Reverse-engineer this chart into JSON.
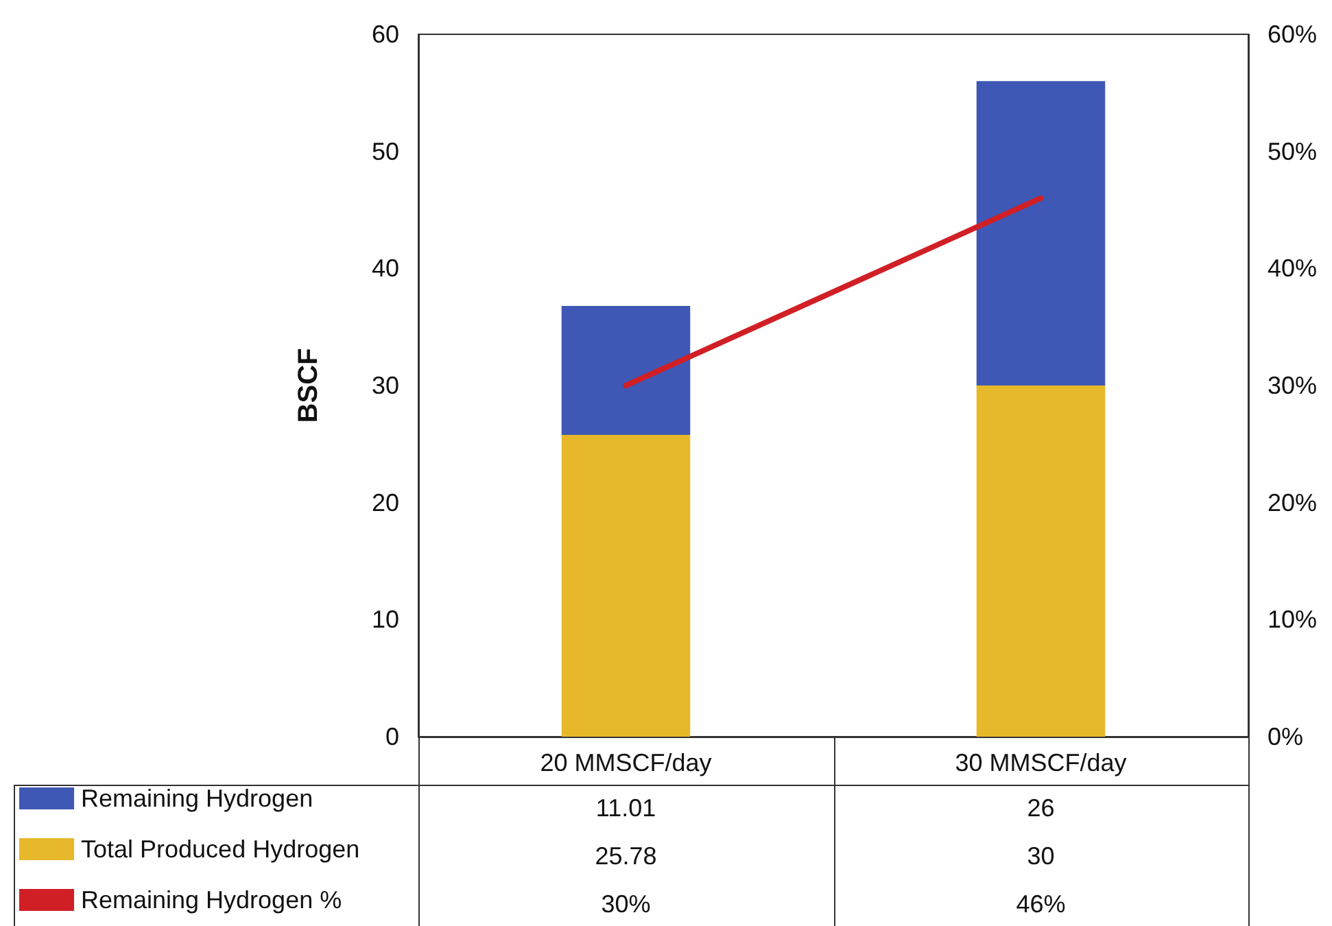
{
  "chart_data": {
    "type": "bar",
    "ylabel": "BSCF",
    "categories": [
      "20 MMSCF/day",
      "30 MMSCF/day"
    ],
    "stacked": true,
    "series": [
      {
        "name": "Total Produced Hydrogen",
        "color": "#e6b82a",
        "values": [
          25.78,
          30
        ],
        "value_labels": [
          "25.78",
          "30"
        ]
      },
      {
        "name": "Remaining Hydrogen",
        "color": "#3f58b5",
        "values": [
          11.01,
          26
        ],
        "value_labels": [
          "11.01",
          "26"
        ]
      },
      {
        "name": "Remaining Hydrogen %",
        "type": "line",
        "axis": "y2",
        "color": "#d11f26",
        "values": [
          30,
          46
        ],
        "value_labels": [
          "30%",
          "46%"
        ]
      }
    ],
    "ylim": [
      0,
      60
    ],
    "yticks": [
      0,
      10,
      20,
      30,
      40,
      50,
      60
    ],
    "y2lim": [
      0,
      60
    ],
    "y2ticks": [
      {
        "value": 0,
        "label": "0%"
      },
      {
        "value": 10,
        "label": "10%"
      },
      {
        "value": 20,
        "label": "20%"
      },
      {
        "value": 30,
        "label": "30%"
      },
      {
        "value": 40,
        "label": "40%"
      },
      {
        "value": 50,
        "label": "50%"
      },
      {
        "value": 60,
        "label": "60%"
      }
    ],
    "legend": "bottom left",
    "grid": false,
    "marker": "none",
    "line_style": "solid"
  }
}
